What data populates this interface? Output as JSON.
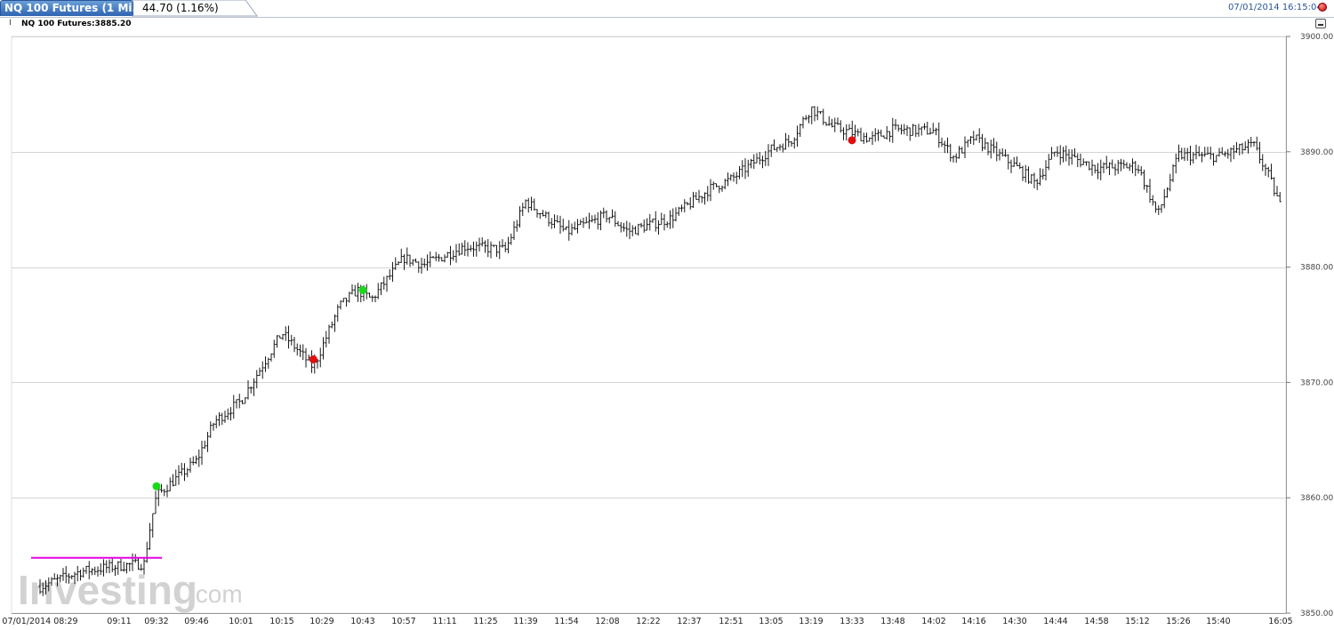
{
  "header": {
    "tab_title": "NQ 100 Futures (1 Mi...",
    "change": "44.70 (1.16%)",
    "timestamp": "07/01/2014 16:15:04",
    "instrument_label": "NQ 100 Futures:3885.20"
  },
  "watermark": {
    "brand": "Investing",
    "suffix": ".com"
  },
  "colors": {
    "bars": "#1a1a1a",
    "grid": "#d4d4d4",
    "level_line": "#e600e6",
    "buy_signal": "#1ad81a",
    "sell_signal": "#e01010",
    "accent": "#2a5599"
  },
  "chart_data": {
    "type": "ohlc",
    "title": "",
    "xlabel": "",
    "ylabel": "",
    "ylim": [
      3850,
      3900
    ],
    "y_ticks": [
      "3900.00",
      "3890.00",
      "3880.00",
      "3870.00",
      "3860.00",
      "3850.00"
    ],
    "x_ticks": [
      "07/01/2014 08:29",
      "09:11",
      "09:32",
      "09:46",
      "10:01",
      "10:15",
      "10:29",
      "10:43",
      "10:57",
      "11:11",
      "11:25",
      "11:39",
      "11:54",
      "12:08",
      "12:22",
      "12:37",
      "12:51",
      "13:05",
      "13:19",
      "13:33",
      "13:48",
      "14:02",
      "14:16",
      "14:30",
      "14:44",
      "14:58",
      "15:12",
      "15:26",
      "15:40",
      "16:05"
    ],
    "grid": "horizontal",
    "close_path": [
      {
        "time": "08:29",
        "price": 3852.3
      },
      {
        "time": "08:50",
        "price": 3853.6
      },
      {
        "time": "09:11",
        "price": 3854.1
      },
      {
        "time": "09:25",
        "price": 3854.3
      },
      {
        "time": "09:29",
        "price": 3858.0
      },
      {
        "time": "09:32",
        "price": 3860.2
      },
      {
        "time": "09:46",
        "price": 3863.2
      },
      {
        "time": "09:52",
        "price": 3866.6
      },
      {
        "time": "10:01",
        "price": 3868.4
      },
      {
        "time": "10:15",
        "price": 3874.3
      },
      {
        "time": "10:22",
        "price": 3872.4
      },
      {
        "time": "10:26",
        "price": 3871.3
      },
      {
        "time": "10:35",
        "price": 3876.6
      },
      {
        "time": "10:41",
        "price": 3878.0
      },
      {
        "time": "10:46",
        "price": 3877.2
      },
      {
        "time": "10:57",
        "price": 3880.8
      },
      {
        "time": "11:04",
        "price": 3880.2
      },
      {
        "time": "11:18",
        "price": 3881.8
      },
      {
        "time": "11:32",
        "price": 3881.5
      },
      {
        "time": "11:39",
        "price": 3885.7
      },
      {
        "time": "11:54",
        "price": 3883.0
      },
      {
        "time": "12:08",
        "price": 3884.5
      },
      {
        "time": "12:15",
        "price": 3883.1
      },
      {
        "time": "12:30",
        "price": 3884.2
      },
      {
        "time": "12:44",
        "price": 3886.8
      },
      {
        "time": "12:51",
        "price": 3887.6
      },
      {
        "time": "13:05",
        "price": 3890.2
      },
      {
        "time": "13:12",
        "price": 3891.0
      },
      {
        "time": "13:19",
        "price": 3893.8
      },
      {
        "time": "13:26",
        "price": 3892.2
      },
      {
        "time": "13:40",
        "price": 3891.1
      },
      {
        "time": "13:48",
        "price": 3891.9
      },
      {
        "time": "14:02",
        "price": 3891.8
      },
      {
        "time": "14:09",
        "price": 3889.5
      },
      {
        "time": "14:16",
        "price": 3891.2
      },
      {
        "time": "14:30",
        "price": 3888.8
      },
      {
        "time": "14:37",
        "price": 3887.3
      },
      {
        "time": "14:44",
        "price": 3890.1
      },
      {
        "time": "14:58",
        "price": 3888.6
      },
      {
        "time": "15:12",
        "price": 3888.8
      },
      {
        "time": "15:19",
        "price": 3884.5
      },
      {
        "time": "15:26",
        "price": 3889.7
      },
      {
        "time": "15:40",
        "price": 3889.6
      },
      {
        "time": "15:54",
        "price": 3890.6
      },
      {
        "time": "16:00",
        "price": 3888.0
      },
      {
        "time": "16:05",
        "price": 3885.2
      }
    ],
    "annotations": {
      "level_line": {
        "price": 3854.8,
        "from": "08:29",
        "to": "09:32"
      },
      "signals": [
        {
          "type": "buy",
          "time": "09:32",
          "price": 3861.0
        },
        {
          "type": "sell",
          "time": "10:26",
          "price": 3872.0
        },
        {
          "type": "buy",
          "time": "10:43",
          "price": 3878.0
        },
        {
          "type": "sell",
          "time": "13:33",
          "price": 3891.0
        }
      ]
    }
  }
}
